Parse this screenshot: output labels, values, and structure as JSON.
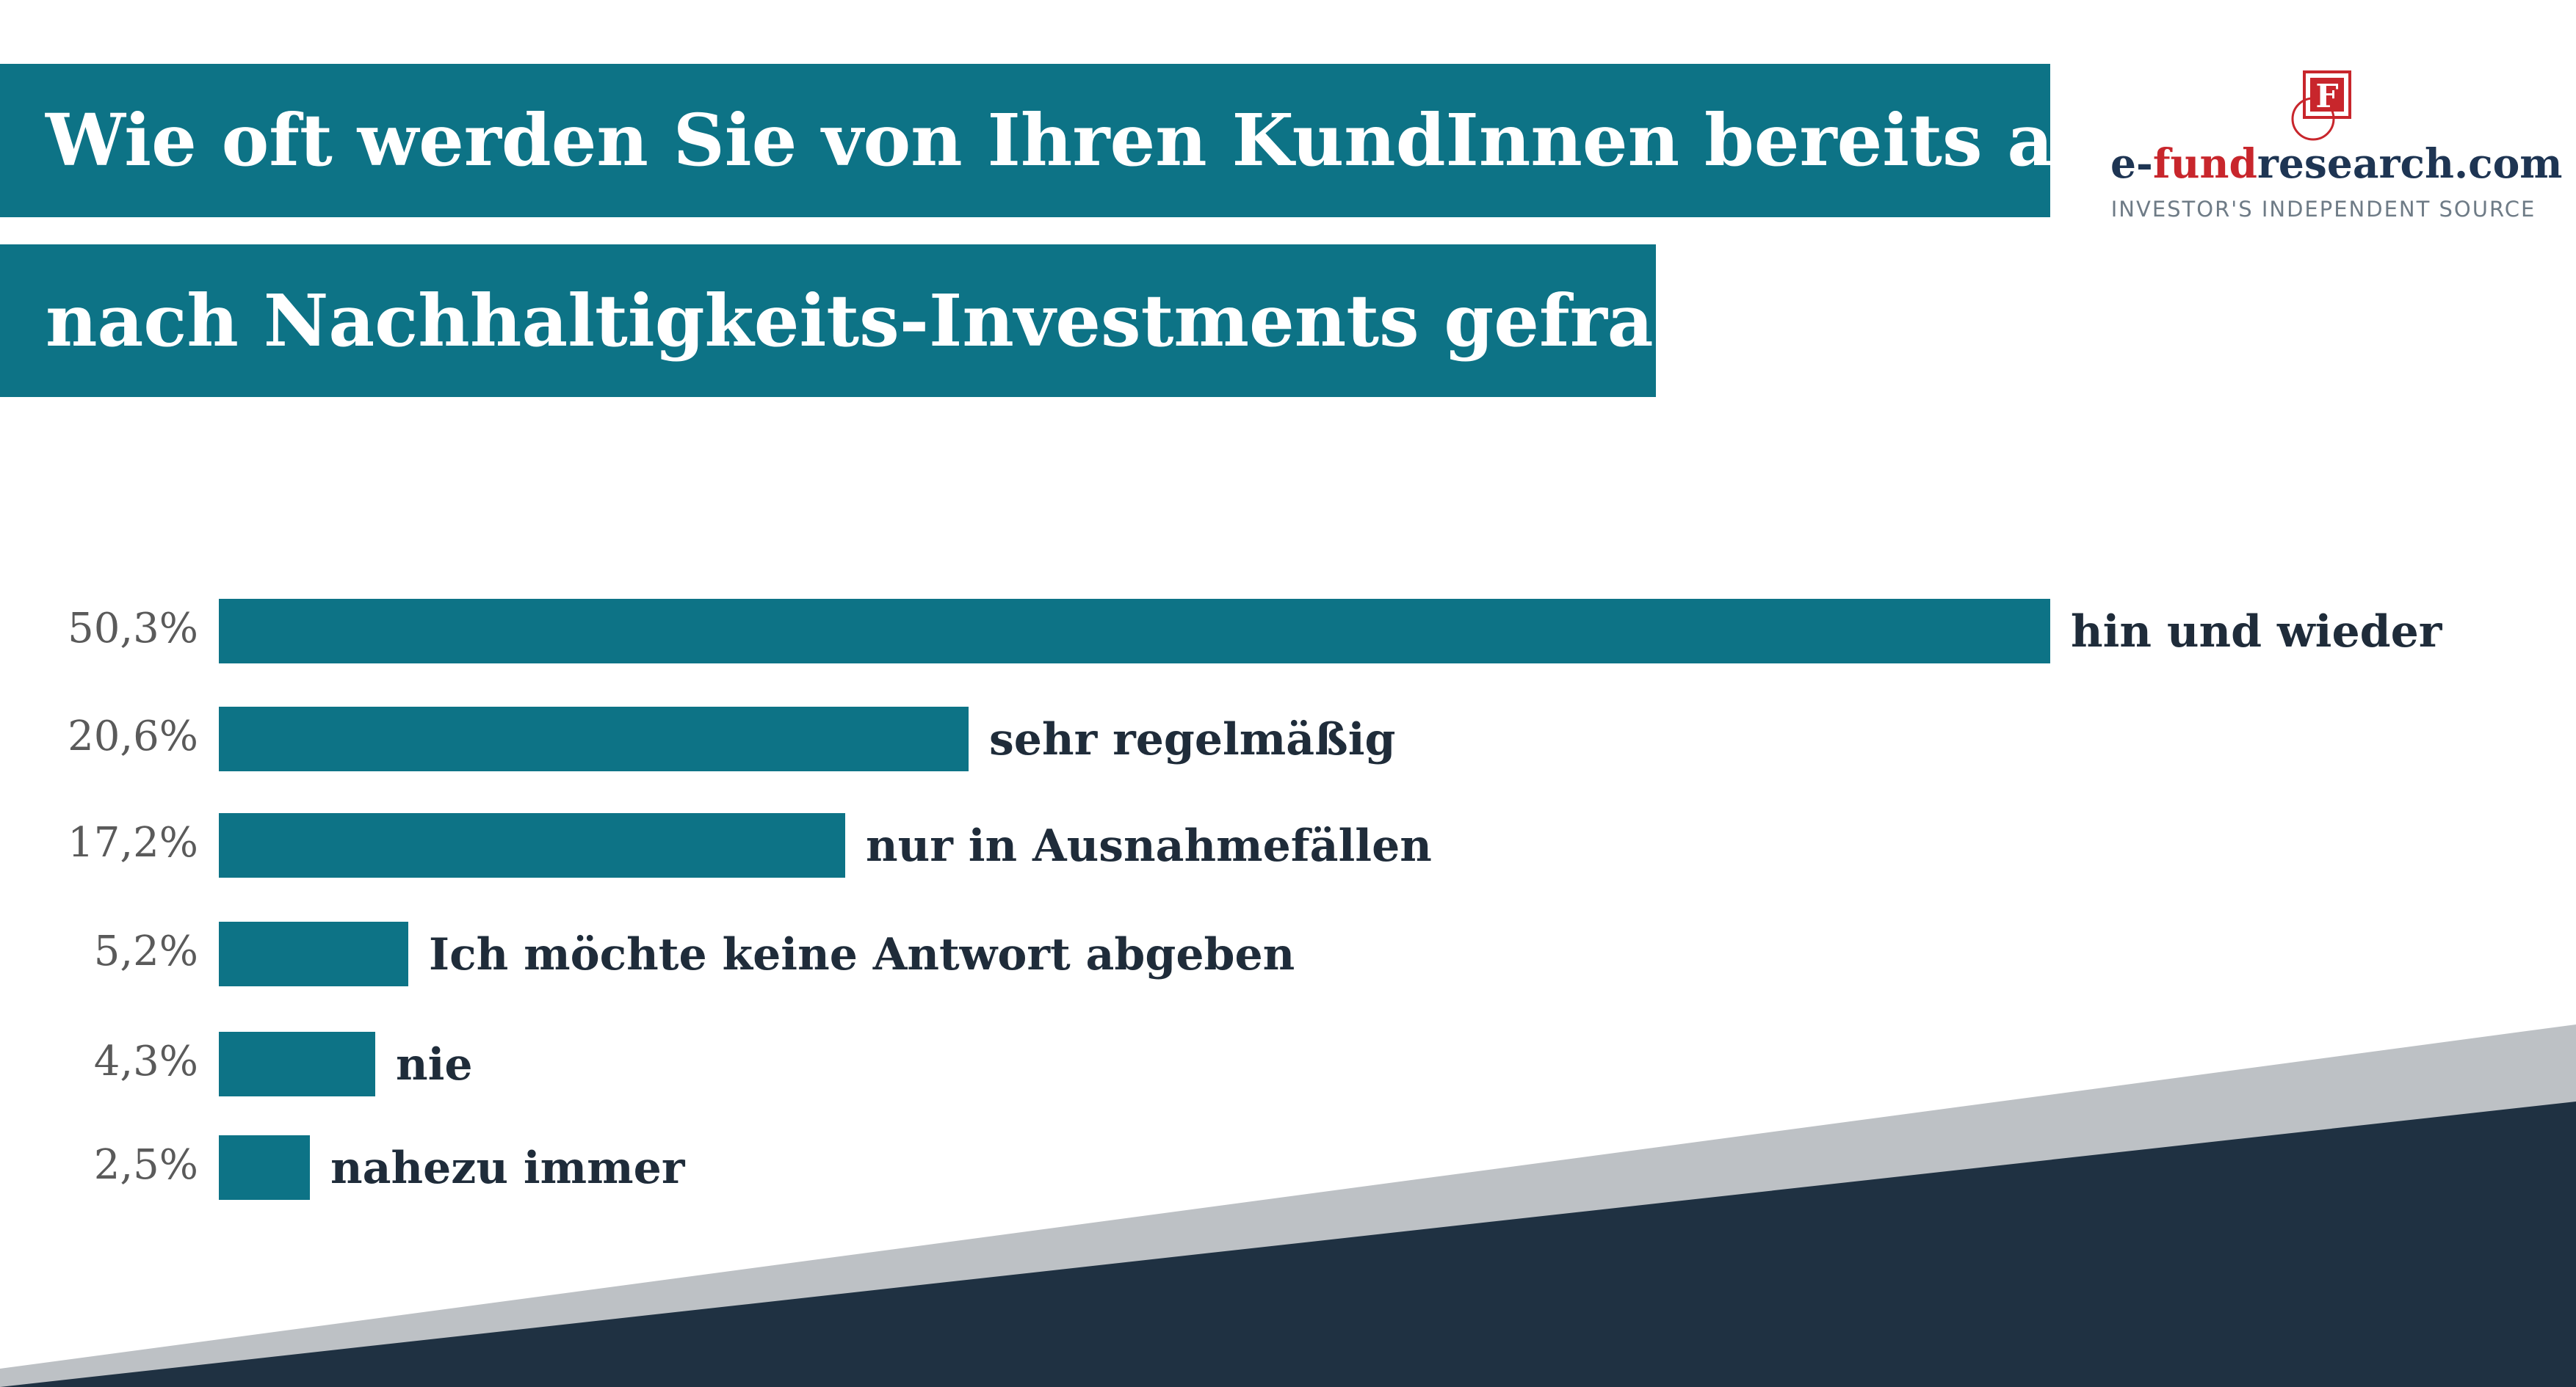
{
  "title": {
    "line1": "Wie oft werden Sie von Ihren KundInnen bereits aktiv",
    "line2": "nach Nachhaltigkeits-Investments gefragt?"
  },
  "logo": {
    "name_prefix": "e-",
    "name_accent": "fund",
    "name_suffix": "research.com",
    "tagline": "INVESTOR'S INDEPENDENT SOURCE",
    "mark_letter": "F"
  },
  "colors": {
    "bar": "#0d7386",
    "header_band": "#0d7386",
    "decor_gray": "#bdc1c5",
    "decor_navy": "#1f3142",
    "logo_red": "#c8262c",
    "logo_navy": "#1e3553"
  },
  "chart_data": {
    "type": "bar",
    "orientation": "horizontal",
    "categories": [
      "hin und wieder",
      "sehr regelmäßig",
      "nur in Ausnahmefällen",
      "Ich möchte keine Antwort abgeben",
      "nie",
      "nahezu immer"
    ],
    "values": [
      50.3,
      20.6,
      17.2,
      5.2,
      4.3,
      2.5
    ],
    "value_labels": [
      "50,3%",
      "20,6%",
      "17,2%",
      "5,2%",
      "4,3%",
      "2,5%"
    ],
    "grid": false,
    "legend": "none"
  }
}
